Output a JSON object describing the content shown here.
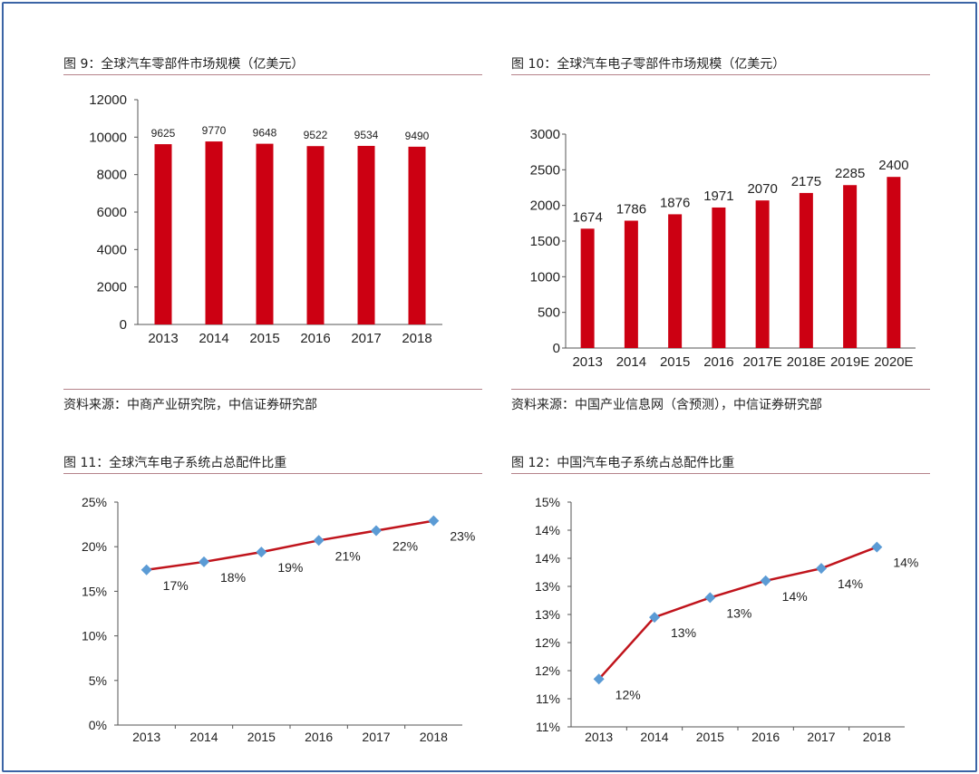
{
  "charts": [
    {
      "title": "图 9：全球汽车零部件市场规模（亿美元）",
      "source": "资料来源：中商产业研究院，中信证券研究部"
    },
    {
      "title": "图 10：全球汽车电子零部件市场规模（亿美元）",
      "source": "资料来源：中国产业信息网（含预测），中信证券研究部"
    },
    {
      "title": "图 11：全球汽车电子系统占总配件比重",
      "source": ""
    },
    {
      "title": "图 12：中国汽车电子系统占总配件比重",
      "source": ""
    }
  ],
  "colors": {
    "bar": "#cc0012",
    "line": "#c0141c",
    "marker": "#5b9bd5",
    "frame": "#3b64a5"
  },
  "chart_data": [
    {
      "type": "bar",
      "title": "图 9：全球汽车零部件市场规模（亿美元）",
      "categories": [
        "2013",
        "2014",
        "2015",
        "2016",
        "2017",
        "2018"
      ],
      "values": [
        9625,
        9770,
        9648,
        9522,
        9534,
        9490
      ],
      "data_labels": [
        "9625",
        "9770",
        "9648",
        "9522",
        "9534",
        "9490"
      ],
      "yticks": [
        "0",
        "2000",
        "4000",
        "6000",
        "8000",
        "10000",
        "12000"
      ],
      "ylim": [
        0,
        12000
      ],
      "grid": false,
      "legend": "none"
    },
    {
      "type": "bar",
      "title": "图 10：全球汽车电子零部件市场规模（亿美元）",
      "categories": [
        "2013",
        "2014",
        "2015",
        "2016",
        "2017E",
        "2018E",
        "2019E",
        "2020E"
      ],
      "values": [
        1674,
        1786,
        1876,
        1971,
        2070,
        2175,
        2285,
        2400
      ],
      "data_labels": [
        "1674",
        "1786",
        "1876",
        "1971",
        "2070",
        "2175",
        "2285",
        "2400"
      ],
      "yticks": [
        "0",
        "500",
        "1000",
        "1500",
        "2000",
        "2500",
        "3000"
      ],
      "ylim": [
        0,
        3000
      ],
      "grid": false,
      "legend": "none"
    },
    {
      "type": "line",
      "title": "图 11：全球汽车电子系统占总配件比重",
      "categories": [
        "2013",
        "2014",
        "2015",
        "2016",
        "2017",
        "2018"
      ],
      "values": [
        17.4,
        18.3,
        19.4,
        20.7,
        21.8,
        22.9
      ],
      "data_labels": [
        "17%",
        "18%",
        "19%",
        "21%",
        "22%",
        "23%"
      ],
      "yticks": [
        "0%",
        "5%",
        "10%",
        "15%",
        "20%",
        "25%"
      ],
      "ylim": [
        0,
        25
      ],
      "grid": false,
      "legend": "none"
    },
    {
      "type": "line",
      "title": "图 12：中国汽车电子系统占总配件比重",
      "categories": [
        "2013",
        "2014",
        "2015",
        "2016",
        "2017",
        "2018"
      ],
      "values": [
        11.85,
        12.95,
        13.3,
        13.6,
        13.82,
        14.2
      ],
      "data_labels": [
        "12%",
        "13%",
        "13%",
        "14%",
        "14%",
        "14%"
      ],
      "yticks": [
        "11%",
        "11%",
        "12%",
        "12%",
        "13%",
        "13%",
        "14%",
        "14%",
        "15%"
      ],
      "ylim": [
        11.0,
        15.0
      ],
      "grid": false,
      "legend": "none"
    }
  ]
}
